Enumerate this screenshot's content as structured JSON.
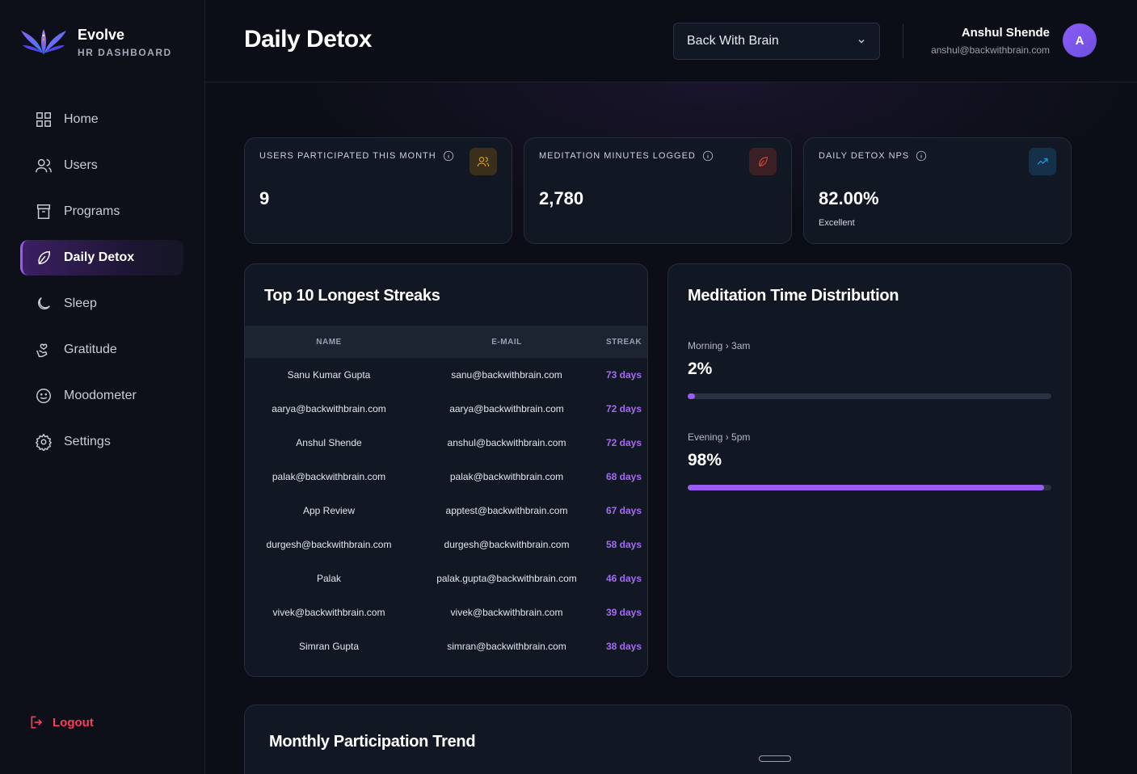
{
  "brand": {
    "name": "Evolve",
    "subtitle": "HR DASHBOARD"
  },
  "sidebar": {
    "items": [
      {
        "label": "Home",
        "icon": "grid-icon",
        "active": false
      },
      {
        "label": "Users",
        "icon": "users-icon",
        "active": false
      },
      {
        "label": "Programs",
        "icon": "archive-icon",
        "active": false
      },
      {
        "label": "Daily Detox",
        "icon": "leaf-icon",
        "active": true
      },
      {
        "label": "Sleep",
        "icon": "moon-icon",
        "active": false
      },
      {
        "label": "Gratitude",
        "icon": "gratitude-icon",
        "active": false
      },
      {
        "label": "Moodometer",
        "icon": "smile-icon",
        "active": false
      },
      {
        "label": "Settings",
        "icon": "gear-icon",
        "active": false
      }
    ],
    "logout_label": "Logout"
  },
  "header": {
    "title": "Daily Detox",
    "org_selected": "Back With Brain",
    "user_name": "Anshul Shende",
    "user_email": "anshul@backwithbrain.com",
    "avatar_initial": "A"
  },
  "stats": [
    {
      "label": "USERS PARTICIPATED THIS MONTH",
      "value": "9",
      "sub": "",
      "icon": "users-icon",
      "accent": "#f0a825"
    },
    {
      "label": "MEDITATION MINUTES LOGGED",
      "value": "2,780",
      "sub": "",
      "icon": "leaf-icon",
      "accent": "#e2483d"
    },
    {
      "label": "DAILY DETOX NPS",
      "value": "82.00%",
      "sub": "Excellent",
      "icon": "trending-up-icon",
      "accent": "#2aa3e8"
    }
  ],
  "streaks": {
    "title": "Top 10 Longest Streaks",
    "columns": [
      "NAME",
      "E-MAIL",
      "STREAK"
    ],
    "rows": [
      [
        "Sanu Kumar Gupta",
        "sanu@backwithbrain.com",
        "73 days"
      ],
      [
        "aarya@backwithbrain.com",
        "aarya@backwithbrain.com",
        "72 days"
      ],
      [
        "Anshul Shende",
        "anshul@backwithbrain.com",
        "72 days"
      ],
      [
        "palak@backwithbrain.com",
        "palak@backwithbrain.com",
        "68 days"
      ],
      [
        "App Review",
        "apptest@backwithbrain.com",
        "67 days"
      ],
      [
        "durgesh@backwithbrain.com",
        "durgesh@backwithbrain.com",
        "58 days"
      ],
      [
        "Palak",
        "palak.gupta@backwithbrain.com",
        "46 days"
      ],
      [
        "vivek@backwithbrain.com",
        "vivek@backwithbrain.com",
        "39 days"
      ],
      [
        "Simran Gupta",
        "simran@backwithbrain.com",
        "38 days"
      ]
    ]
  },
  "distribution": {
    "title": "Meditation Time Distribution",
    "items": [
      {
        "label": "Morning › 3am",
        "value": "2%",
        "percent": 2
      },
      {
        "label": "Evening › 5pm",
        "value": "98%",
        "percent": 98
      }
    ]
  },
  "trend": {
    "title": "Monthly Participation Trend"
  },
  "colors": {
    "accent": "#9b5cf6",
    "danger": "#ff3b5c",
    "streak": "#a66bf4"
  }
}
